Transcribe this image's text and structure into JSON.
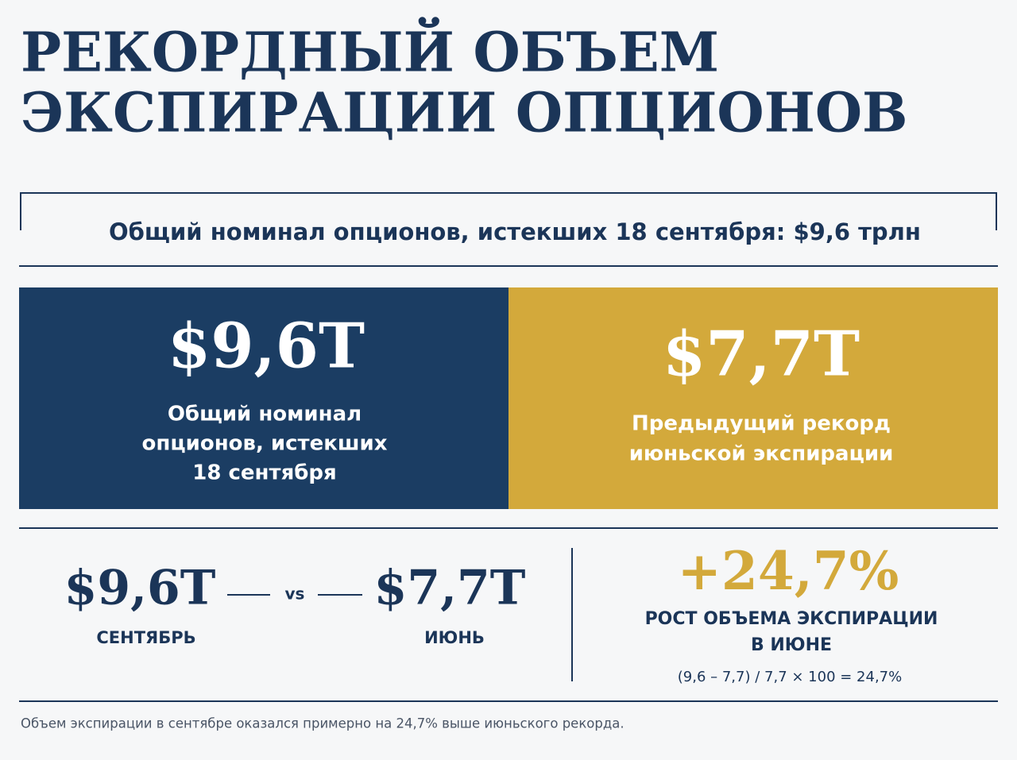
{
  "header": {
    "title": [
      "РЕКОРДНЫЙ ОБЪЕМ",
      "ЭКСПИРАЦИИ ОПЦИОНОВ"
    ],
    "subtitle": "Общий номинал опционов, истекших 18 сентября: $9,6 трлн"
  },
  "panels": [
    {
      "value": "$9,6T",
      "label": [
        "Общий номинал",
        "опционов, истекших",
        "18 сентября"
      ]
    },
    {
      "value": "$7,7T",
      "label": [
        "Предыдущий рекорд",
        "июньской экспирации"
      ]
    }
  ],
  "comparison": {
    "left": {
      "value": "$9,6T",
      "label": "СЕНТЯБРЬ"
    },
    "vs": "vs",
    "right": {
      "value": "$7,7T",
      "label": "ИЮНЬ"
    }
  },
  "growth": {
    "value": "+24,7%",
    "label": [
      "РОСТ ОБЪЕМА ЭКСПИРАЦИИ",
      "В ИЮНЕ"
    ],
    "formula": "(9,6 – 7,7) / 7,7 × 100 = 24,7%"
  },
  "footnote": "Объем экспирации в сентябре оказался примерно на 24,7% выше июньского рекорда."
}
